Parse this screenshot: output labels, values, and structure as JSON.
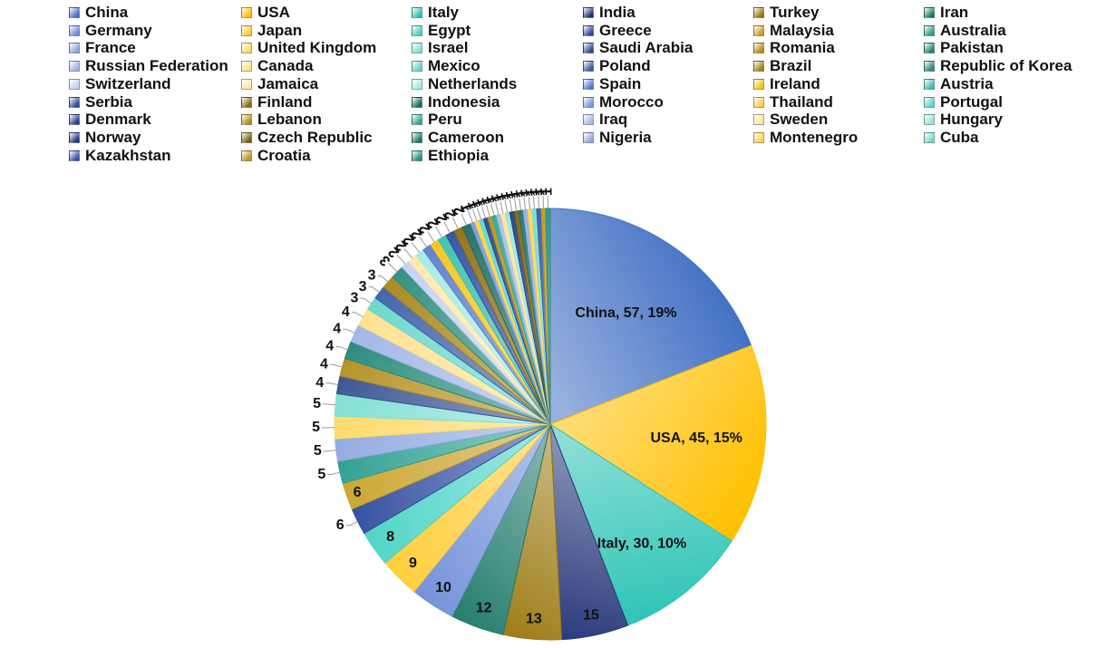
{
  "chart_data": {
    "type": "pie",
    "legend_position": "top",
    "slices": [
      {
        "label": "China",
        "value": 57,
        "color": "#4472c4",
        "callout": "China, 57, 19%"
      },
      {
        "label": "USA",
        "value": 45,
        "color": "#ffc000",
        "callout": "USA, 45, 15%"
      },
      {
        "label": "Italy",
        "value": 30,
        "color": "#2ec4b6",
        "callout": "Italy, 30, 10%"
      },
      {
        "label": "India",
        "value": 15,
        "color": "#26377a",
        "callout": "15"
      },
      {
        "label": "Turkey",
        "value": 13,
        "color": "#9c7a12",
        "callout": "13"
      },
      {
        "label": "Iran",
        "value": 12,
        "color": "#1f7a6a",
        "callout": "12"
      },
      {
        "label": "Germany",
        "value": 10,
        "color": "#6f8fd8",
        "callout": "10"
      },
      {
        "label": "Japan",
        "value": 9,
        "color": "#ffcc33",
        "callout": "9"
      },
      {
        "label": "Egypt",
        "value": 8,
        "color": "#4ad3c5",
        "callout": "8"
      },
      {
        "label": "Greece",
        "value": 6,
        "color": "#2f4a9e",
        "callout": "6"
      },
      {
        "label": "Malaysia",
        "value": 6,
        "color": "#c9a227",
        "callout": "6"
      },
      {
        "label": "Australia",
        "value": 5,
        "color": "#2a9d8f",
        "callout": "5"
      },
      {
        "label": "France",
        "value": 5,
        "color": "#8fa8e0",
        "callout": "5"
      },
      {
        "label": "United Kingdom",
        "value": 5,
        "color": "#ffd966",
        "callout": "5"
      },
      {
        "label": "Israel",
        "value": 5,
        "color": "#7fded3",
        "callout": "5"
      },
      {
        "label": "Saudi Arabia",
        "value": 4,
        "color": "#34508f",
        "callout": "4"
      },
      {
        "label": "Romania",
        "value": 4,
        "color": "#b38f1f",
        "callout": "4"
      },
      {
        "label": "Pakistan",
        "value": 4,
        "color": "#25877a",
        "callout": "4"
      },
      {
        "label": "Russian Federation",
        "value": 4,
        "color": "#9fb4e6",
        "callout": "4"
      },
      {
        "label": "Canada",
        "value": 4,
        "color": "#ffe08a",
        "callout": "4"
      },
      {
        "label": "Mexico",
        "value": 3,
        "color": "#66d6c9",
        "callout": "3"
      },
      {
        "label": "Poland",
        "value": 3,
        "color": "#3c5ea8",
        "callout": "3"
      },
      {
        "label": "Brazil",
        "value": 3,
        "color": "#a68416",
        "callout": "3"
      },
      {
        "label": "Republic of Korea",
        "value": 3,
        "color": "#2b8c7e",
        "callout": "3"
      },
      {
        "label": "Switzerland",
        "value": 2,
        "color": "#c3d0f0",
        "callout": "2"
      },
      {
        "label": "Jamaica",
        "value": 2,
        "color": "#ffe9a8",
        "callout": "2"
      },
      {
        "label": "Netherlands",
        "value": 2,
        "color": "#a6ebe2",
        "callout": "2"
      },
      {
        "label": "Spain",
        "value": 2,
        "color": "#5a7ccc",
        "callout": "2"
      },
      {
        "label": "Ireland",
        "value": 2,
        "color": "#f5c518",
        "callout": "2"
      },
      {
        "label": "Austria",
        "value": 2,
        "color": "#3bbfae",
        "callout": "2"
      },
      {
        "label": "Serbia",
        "value": 2,
        "color": "#2d4ea0",
        "callout": "2"
      },
      {
        "label": "Finland",
        "value": 2,
        "color": "#8c6d10",
        "callout": "2"
      },
      {
        "label": "Indonesia",
        "value": 2,
        "color": "#1d6b5f",
        "callout": "2"
      },
      {
        "label": "Morocco",
        "value": 1,
        "color": "#7b98dc",
        "callout": "1"
      },
      {
        "label": "Thailand",
        "value": 1,
        "color": "#ffd23f",
        "callout": "1"
      },
      {
        "label": "Portugal",
        "value": 1,
        "color": "#5ed8c9",
        "callout": "1"
      },
      {
        "label": "Denmark",
        "value": 1,
        "color": "#2a4590",
        "callout": "1"
      },
      {
        "label": "Lebanon",
        "value": 1,
        "color": "#b8911a",
        "callout": "1"
      },
      {
        "label": "Peru",
        "value": 1,
        "color": "#2fa899",
        "callout": "1"
      },
      {
        "label": "Iraq",
        "value": 1,
        "color": "#a9bdea",
        "callout": "1"
      },
      {
        "label": "Sweden",
        "value": 1,
        "color": "#ffe595",
        "callout": "1"
      },
      {
        "label": "Hungary",
        "value": 1,
        "color": "#9ae6dc",
        "callout": "1"
      },
      {
        "label": "Norway",
        "value": 1,
        "color": "#243d85",
        "callout": "1"
      },
      {
        "label": "Czech Republic",
        "value": 1,
        "color": "#7d610c",
        "callout": "1"
      },
      {
        "label": "Cameroon",
        "value": 1,
        "color": "#1f7567",
        "callout": "1"
      },
      {
        "label": "Nigeria",
        "value": 1,
        "color": "#93abe3",
        "callout": "1"
      },
      {
        "label": "Montenegro",
        "value": 1,
        "color": "#ffd54d",
        "callout": "1"
      },
      {
        "label": "Cuba",
        "value": 1,
        "color": "#72dccf",
        "callout": "1"
      },
      {
        "label": "Kazakhstan",
        "value": 1,
        "color": "#3757a6",
        "callout": "1"
      },
      {
        "label": "Croatia",
        "value": 1,
        "color": "#bd9722",
        "callout": "1"
      },
      {
        "label": "Ethiopia",
        "value": 1,
        "color": "#27907f",
        "callout": "1"
      }
    ]
  }
}
